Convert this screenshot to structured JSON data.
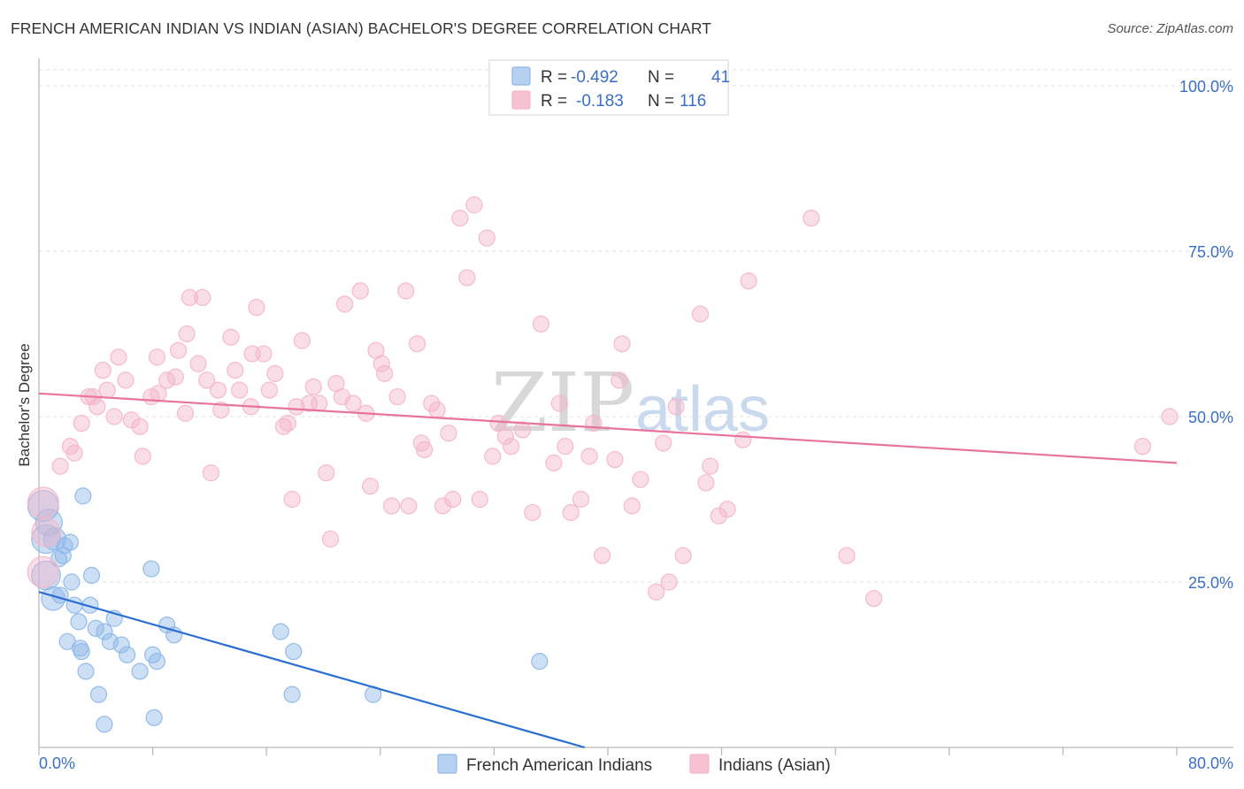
{
  "chart_data": {
    "type": "scatter",
    "title": "FRENCH AMERICAN INDIAN VS INDIAN (ASIAN) BACHELOR'S DEGREE CORRELATION CHART",
    "source": "Source: ZipAtlas.com",
    "xlabel": "",
    "ylabel": "Bachelor's Degree",
    "xlim": [
      0,
      80
    ],
    "ylim": [
      0,
      100
    ],
    "x_tick_labels": [
      "0.0%",
      "80.0%"
    ],
    "y_tick_values": [
      25,
      50,
      75,
      100
    ],
    "y_tick_labels": [
      "25.0%",
      "50.0%",
      "75.0%",
      "100.0%"
    ],
    "grid": true,
    "watermark": [
      "ZIP",
      "atlas"
    ],
    "legend": [
      {
        "r_label": "R = ",
        "r_value": "-0.492",
        "n_label": "N = ",
        "n_value": "41",
        "color": "#a8c8ef"
      },
      {
        "r_label": "R = ",
        "r_value": "-0.183",
        "n_label": "N = ",
        "n_value": "116",
        "color": "#f5b6c9"
      }
    ],
    "series": [
      {
        "name": "French American Indians",
        "color": "#8fb8e8",
        "line_color": "#2a6fcf",
        "trend": {
          "x": [
            0,
            40
          ],
          "y": [
            23.5,
            -1
          ]
        },
        "points": [
          [
            0.3,
            36.5
          ],
          [
            0.7,
            34
          ],
          [
            0.5,
            31.5
          ],
          [
            1.1,
            31.5
          ],
          [
            2.2,
            31
          ],
          [
            1.8,
            30.5
          ],
          [
            0.5,
            26
          ],
          [
            1.4,
            28.5
          ],
          [
            3.1,
            38
          ],
          [
            1.7,
            29
          ],
          [
            3.7,
            26
          ],
          [
            2.3,
            25
          ],
          [
            1.5,
            23
          ],
          [
            1.0,
            22.5
          ],
          [
            2.5,
            21.5
          ],
          [
            3.6,
            21.5
          ],
          [
            5.3,
            19.5
          ],
          [
            2.8,
            19
          ],
          [
            4.0,
            18
          ],
          [
            4.6,
            17.5
          ],
          [
            9.0,
            18.5
          ],
          [
            9.5,
            17
          ],
          [
            2.0,
            16
          ],
          [
            5.0,
            16
          ],
          [
            5.8,
            15.5
          ],
          [
            2.9,
            15
          ],
          [
            3.0,
            14.5
          ],
          [
            6.2,
            14
          ],
          [
            8.0,
            14
          ],
          [
            8.3,
            13
          ],
          [
            7.1,
            11.5
          ],
          [
            3.3,
            11.5
          ],
          [
            17.0,
            17.5
          ],
          [
            17.9,
            14.5
          ],
          [
            35.2,
            13
          ],
          [
            7.9,
            27
          ],
          [
            4.2,
            8
          ],
          [
            17.8,
            8
          ],
          [
            23.5,
            8
          ],
          [
            8.1,
            4.5
          ],
          [
            4.6,
            3.5
          ]
        ]
      },
      {
        "name": "Indians (Asian)",
        "color": "#f5b6c9",
        "line_color": "#e8749c",
        "trend": {
          "x": [
            0,
            80
          ],
          "y": [
            53.5,
            43
          ]
        },
        "points": [
          [
            0.3,
            37
          ],
          [
            0.5,
            32.5
          ],
          [
            0.3,
            26.5
          ],
          [
            1.5,
            42.5
          ],
          [
            2.2,
            45.5
          ],
          [
            2.5,
            44.5
          ],
          [
            3.0,
            49
          ],
          [
            3.5,
            53
          ],
          [
            3.8,
            53
          ],
          [
            4.1,
            51.5
          ],
          [
            4.5,
            57
          ],
          [
            4.8,
            54
          ],
          [
            5.3,
            50
          ],
          [
            5.6,
            59
          ],
          [
            6.1,
            55.5
          ],
          [
            6.5,
            49.5
          ],
          [
            7.1,
            48.5
          ],
          [
            7.3,
            44
          ],
          [
            7.9,
            53
          ],
          [
            8.3,
            59
          ],
          [
            8.4,
            53.5
          ],
          [
            9.0,
            55.5
          ],
          [
            9.6,
            56
          ],
          [
            9.8,
            60
          ],
          [
            10.3,
            50.5
          ],
          [
            10.4,
            62.5
          ],
          [
            10.6,
            68
          ],
          [
            11.2,
            58
          ],
          [
            11.5,
            68
          ],
          [
            11.8,
            55.5
          ],
          [
            12.1,
            41.5
          ],
          [
            12.6,
            54
          ],
          [
            12.8,
            51
          ],
          [
            13.5,
            62
          ],
          [
            13.8,
            57
          ],
          [
            14.1,
            54
          ],
          [
            14.9,
            51.5
          ],
          [
            15.0,
            59.5
          ],
          [
            15.3,
            66.5
          ],
          [
            15.8,
            59.5
          ],
          [
            16.2,
            54
          ],
          [
            16.6,
            56.5
          ],
          [
            17.2,
            48.5
          ],
          [
            17.5,
            49
          ],
          [
            17.8,
            37.5
          ],
          [
            18.1,
            51.5
          ],
          [
            18.5,
            61.5
          ],
          [
            19.0,
            52
          ],
          [
            19.3,
            54.5
          ],
          [
            19.7,
            52
          ],
          [
            20.2,
            41.5
          ],
          [
            20.5,
            31.5
          ],
          [
            20.9,
            55
          ],
          [
            21.3,
            53
          ],
          [
            21.5,
            67
          ],
          [
            22.1,
            52
          ],
          [
            22.6,
            69
          ],
          [
            23.0,
            50.5
          ],
          [
            23.3,
            39.5
          ],
          [
            23.7,
            60
          ],
          [
            24.1,
            58
          ],
          [
            24.3,
            56.5
          ],
          [
            24.8,
            36.5
          ],
          [
            25.2,
            53
          ],
          [
            25.8,
            69
          ],
          [
            26.0,
            36.5
          ],
          [
            26.6,
            61
          ],
          [
            26.9,
            46
          ],
          [
            27.1,
            45
          ],
          [
            27.6,
            52
          ],
          [
            28.0,
            51
          ],
          [
            28.4,
            36.5
          ],
          [
            28.8,
            47.5
          ],
          [
            29.1,
            37.5
          ],
          [
            29.6,
            80
          ],
          [
            30.1,
            71
          ],
          [
            30.6,
            82
          ],
          [
            31.0,
            37.5
          ],
          [
            31.5,
            77
          ],
          [
            31.9,
            44
          ],
          [
            32.3,
            49
          ],
          [
            32.8,
            47
          ],
          [
            33.2,
            45.5
          ],
          [
            34.0,
            48
          ],
          [
            34.7,
            35.5
          ],
          [
            35.3,
            64
          ],
          [
            36.2,
            43
          ],
          [
            36.6,
            52
          ],
          [
            37.0,
            45.5
          ],
          [
            37.4,
            35.5
          ],
          [
            38.1,
            37.5
          ],
          [
            38.7,
            44
          ],
          [
            39.0,
            49
          ],
          [
            39.6,
            29
          ],
          [
            40.5,
            43.5
          ],
          [
            40.8,
            55.5
          ],
          [
            41.0,
            61
          ],
          [
            41.7,
            36.5
          ],
          [
            42.3,
            40.5
          ],
          [
            43.4,
            23.5
          ],
          [
            43.9,
            46
          ],
          [
            44.3,
            25
          ],
          [
            44.8,
            51.5
          ],
          [
            45.3,
            29
          ],
          [
            46.5,
            65.5
          ],
          [
            46.9,
            40
          ],
          [
            47.2,
            42.5
          ],
          [
            47.8,
            35
          ],
          [
            48.4,
            36
          ],
          [
            49.5,
            46.5
          ],
          [
            49.9,
            70.5
          ],
          [
            54.3,
            80
          ],
          [
            56.8,
            29
          ],
          [
            58.7,
            22.5
          ],
          [
            77.6,
            45.5
          ],
          [
            79.5,
            50
          ]
        ]
      }
    ]
  }
}
